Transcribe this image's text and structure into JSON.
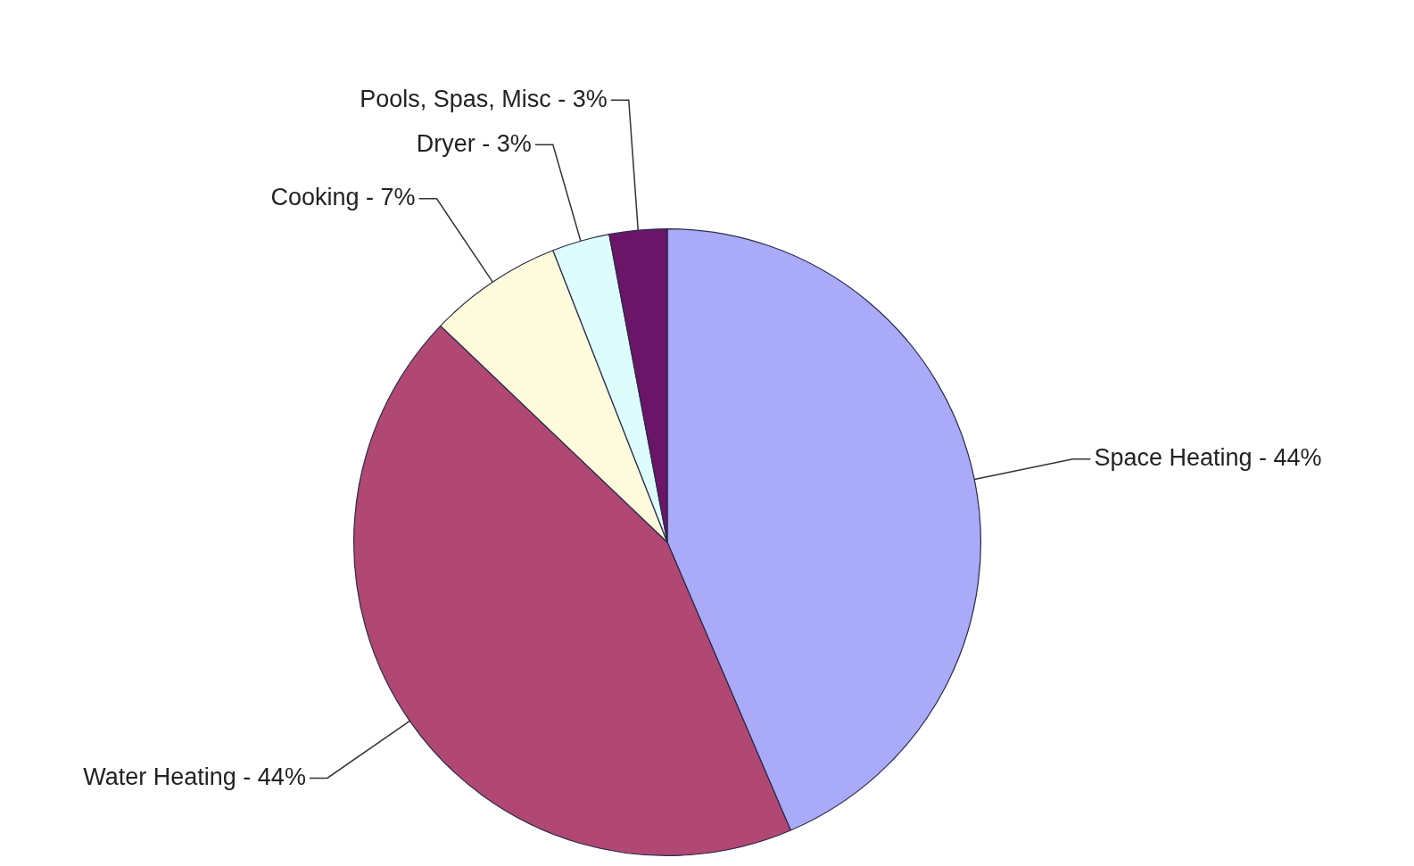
{
  "chart_data": {
    "type": "pie",
    "categories": [
      "Space Heating",
      "Water Heating",
      "Cooking",
      "Dryer",
      "Pools, Spas, Misc"
    ],
    "values": [
      44,
      44,
      7,
      3,
      3
    ],
    "value_labels": [
      "44%",
      "44%",
      "7%",
      "3%",
      "3%"
    ],
    "colors": [
      "#a9aaf8",
      "#b04873",
      "#fdfbdc",
      "#ddfcfc",
      "#6b1568"
    ],
    "legend": false
  }
}
